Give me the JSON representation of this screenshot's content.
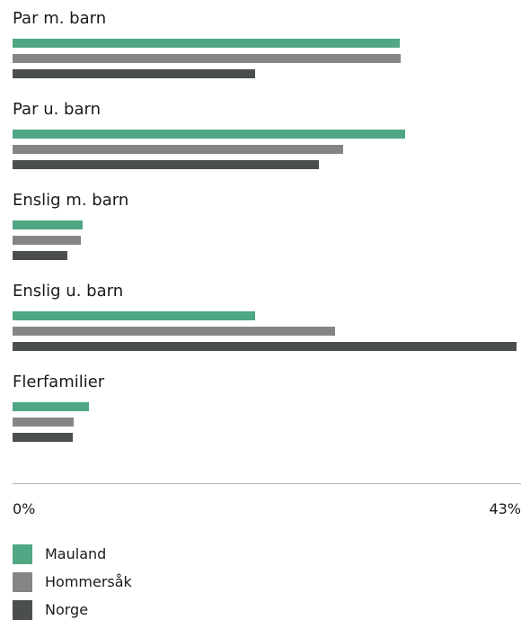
{
  "chart_data": {
    "type": "bar",
    "orientation": "horizontal",
    "categories": [
      "Par m. barn",
      "Par u. barn",
      "Enslig m. barn",
      "Enslig u. barn",
      "Flerfamilier"
    ],
    "series": [
      {
        "name": "Mauland",
        "color": "#4fa783",
        "values": [
          33,
          33.5,
          6,
          20.7,
          6.5
        ]
      },
      {
        "name": "Hommersåk",
        "color": "#858585",
        "values": [
          33.1,
          28.2,
          5.8,
          27.5,
          5.2
        ]
      },
      {
        "name": "Norge",
        "color": "#4b4e4f",
        "values": [
          20.7,
          26.1,
          4.7,
          43,
          5.1
        ]
      }
    ],
    "xlim": [
      0,
      43
    ],
    "tick_labels": [
      "0%",
      "43%"
    ],
    "legend_position": "bottom-left",
    "grid": false
  }
}
